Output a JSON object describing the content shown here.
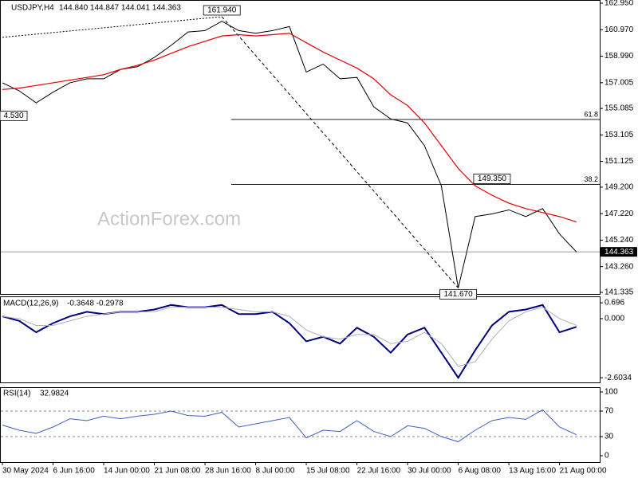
{
  "chart_data": [
    {
      "type": "line",
      "title": "USDJPY,H4",
      "subtitle": "144.840 144.847 144.041 144.363",
      "watermark": "ActionForex.com",
      "ylim": [
        141.335,
        162.95
      ],
      "yticks": [
        {
          "value": 162.95,
          "label": "162.950"
        },
        {
          "value": 160.97,
          "label": "160.970"
        },
        {
          "value": 158.99,
          "label": "158.990"
        },
        157.005,
        155.085,
        153.105,
        151.125,
        {
          "value": 149.2,
          "label": "149.200"
        },
        {
          "value": 147.22,
          "label": "147.220"
        },
        {
          "value": 145.24,
          "label": "145.240"
        },
        {
          "value": 143.26,
          "label": "143.260"
        },
        141.335
      ],
      "series": [
        {
          "color": "#000000",
          "values": [
            157.0,
            156.4,
            155.5,
            156.3,
            157.0,
            157.3,
            157.3,
            158.0,
            158.2,
            158.9,
            159.8,
            160.8,
            160.9,
            161.6,
            160.9,
            160.7,
            160.9,
            161.2,
            157.8,
            158.4,
            157.3,
            157.4,
            155.2,
            154.3,
            154.0,
            152.3,
            149.3,
            141.67,
            147.0,
            147.2,
            147.5,
            147.0,
            147.6,
            145.7,
            144.363
          ]
        },
        {
          "color": "#e00000",
          "values": [
            156.5,
            156.6,
            156.8,
            157.0,
            157.2,
            157.4,
            157.6,
            158.0,
            158.3,
            158.7,
            159.2,
            159.7,
            160.1,
            160.5,
            160.6,
            160.5,
            160.6,
            160.7,
            160.0,
            159.3,
            158.7,
            158.1,
            157.3,
            156.1,
            155.3,
            154.0,
            152.3,
            150.6,
            149.3,
            148.6,
            148.0,
            147.6,
            147.3,
            147.0,
            146.6
          ]
        }
      ],
      "annotations": [
        {
          "label": "161.940",
          "x": 13,
          "y": 161.94
        },
        {
          "label": "141.670",
          "x": 27,
          "y": 141.67
        },
        {
          "label": "149.350",
          "x": 29,
          "y": 149.35
        },
        {
          "label": "4.530",
          "x": 0,
          "y": 154.53
        }
      ],
      "levels": [
        {
          "label": "61.8",
          "y": 154.26
        },
        {
          "label": "38.2",
          "y": 149.4
        }
      ],
      "trendlines": [
        {
          "x": [
            0,
            13
          ],
          "y": [
            160.4,
            161.94
          ],
          "style": "dotted"
        },
        {
          "x": [
            13,
            27
          ],
          "y": [
            161.94,
            141.67
          ],
          "style": "dashed"
        }
      ],
      "last_price": {
        "value": 144.363,
        "label": "144.363"
      }
    },
    {
      "type": "line",
      "title": "MACD(12,26,9)",
      "subtitle": "-0.3648 -0.2978",
      "ylim": [
        -2.81,
        0.98
      ],
      "yticks": [
        0.696,
        {
          "value": 0,
          "label": "0.000"
        },
        -2.6034
      ],
      "series": [
        {
          "color": "#000080",
          "values": [
            0.1,
            -0.1,
            -0.6,
            -0.2,
            0.1,
            0.3,
            0.2,
            0.3,
            0.3,
            0.4,
            0.6,
            0.5,
            0.5,
            0.6,
            0.2,
            0.2,
            0.3,
            -0.2,
            -1.0,
            -0.8,
            -1.1,
            -0.4,
            -0.8,
            -1.5,
            -0.7,
            -0.4,
            -1.5,
            -2.6034,
            -1.4,
            -0.3,
            0.3,
            0.4,
            0.6,
            -0.6,
            -0.3648
          ]
        },
        {
          "color": "#b0b0b0",
          "values": [
            0.1,
            0.0,
            -0.3,
            -0.3,
            -0.1,
            0.1,
            0.2,
            0.3,
            0.3,
            0.3,
            0.5,
            0.5,
            0.5,
            0.5,
            0.4,
            0.3,
            0.3,
            0.1,
            -0.5,
            -0.8,
            -0.9,
            -0.7,
            -0.7,
            -1.1,
            -1.0,
            -0.6,
            -1.1,
            -2.1,
            -1.9,
            -0.9,
            -0.1,
            0.3,
            0.5,
            0.0,
            -0.2978
          ]
        }
      ]
    },
    {
      "type": "line",
      "title": "RSI(14)",
      "subtitle": "32.9824",
      "ylim": [
        -10,
        107.5
      ],
      "yticks": [
        100,
        70,
        30,
        0
      ],
      "dashed_levels": [
        70,
        30
      ],
      "categories": [
        "30 May 2024",
        null,
        null,
        "6 Jun 16:00",
        null,
        null,
        "14 Jun 00:00",
        null,
        null,
        "21 Jun 08:00",
        null,
        null,
        "28 Jun 16:00",
        null,
        null,
        "8 Jul 00:00",
        null,
        null,
        "15 Jul 08:00",
        null,
        null,
        "22 Jul 16:00",
        null,
        null,
        "30 Jul 00:00",
        null,
        null,
        "6 Aug 08:00",
        null,
        null,
        "13 Aug 16:00",
        null,
        null,
        "21 Aug 00:00",
        null
      ],
      "series": [
        {
          "color": "#4060c0",
          "values": [
            48,
            40,
            35,
            45,
            58,
            55,
            62,
            58,
            62,
            65,
            70,
            63,
            62,
            68,
            45,
            50,
            55,
            60,
            28,
            40,
            38,
            55,
            38,
            30,
            47,
            43,
            30,
            22,
            40,
            55,
            60,
            57,
            72,
            45,
            32.9824
          ]
        }
      ]
    }
  ]
}
